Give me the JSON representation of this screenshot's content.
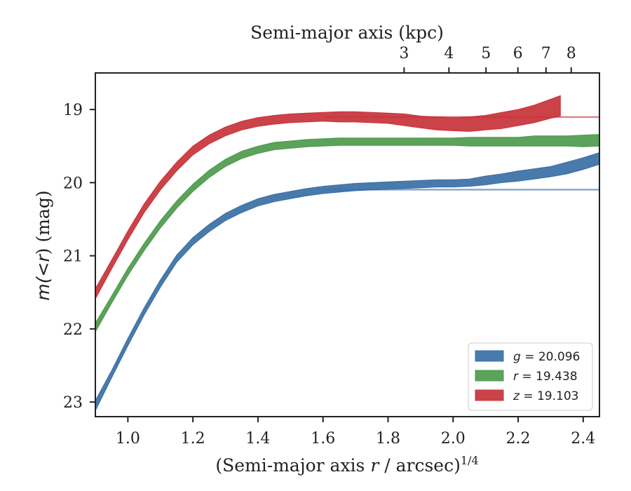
{
  "chart_data": {
    "type": "area",
    "xlabel": "(Semi-major axis r / arcsec)",
    "xlabel_var": "r",
    "xlabel_pre": "(Semi-major axis ",
    "xlabel_post": " / arcsec)",
    "xlabel_sup": "1/4",
    "ylabel_pre": "m(",
    "ylabel_lt": "<",
    "ylabel_r": "r",
    "ylabel_post": ") (mag)",
    "top_xlabel": "Semi-major axis (kpc)",
    "xlim": [
      0.9,
      2.45
    ],
    "ylim": [
      23.2,
      18.5
    ],
    "y_inverted": true,
    "x_ticks": [
      "1.0",
      "1.2",
      "1.4",
      "1.6",
      "1.8",
      "2.0",
      "2.2",
      "2.4"
    ],
    "y_ticks": [
      "19",
      "20",
      "21",
      "22",
      "23"
    ],
    "top_ticks": [
      "3",
      "4",
      "5",
      "6",
      "7",
      "8"
    ],
    "top_ticks_kpc": [
      3,
      4,
      5,
      6,
      7,
      8
    ],
    "kpc_per_arcsec": 0.2565,
    "legend_position": "lower-right",
    "series": [
      {
        "band": "g",
        "value": "20.096",
        "asymptote": 20.096,
        "asymptote_from": 1.6,
        "color": "#3a6fa5",
        "points": [
          [
            0.9,
            23.05,
            0.07
          ],
          [
            0.95,
            22.62,
            0.05
          ],
          [
            1.0,
            22.18,
            0.05
          ],
          [
            1.05,
            21.76,
            0.05
          ],
          [
            1.1,
            21.38,
            0.05
          ],
          [
            1.15,
            21.04,
            0.05
          ],
          [
            1.2,
            20.8,
            0.05
          ],
          [
            1.25,
            20.62,
            0.05
          ],
          [
            1.3,
            20.47,
            0.05
          ],
          [
            1.35,
            20.36,
            0.05
          ],
          [
            1.4,
            20.27,
            0.05
          ],
          [
            1.45,
            20.21,
            0.05
          ],
          [
            1.5,
            20.17,
            0.05
          ],
          [
            1.55,
            20.13,
            0.05
          ],
          [
            1.6,
            20.1,
            0.05
          ],
          [
            1.65,
            20.08,
            0.05
          ],
          [
            1.7,
            20.06,
            0.05
          ],
          [
            1.75,
            20.05,
            0.05
          ],
          [
            1.8,
            20.04,
            0.05
          ],
          [
            1.85,
            20.03,
            0.05
          ],
          [
            1.9,
            20.02,
            0.05
          ],
          [
            1.95,
            20.01,
            0.05
          ],
          [
            2.0,
            20.01,
            0.05
          ],
          [
            2.05,
            20.0,
            0.05
          ],
          [
            2.1,
            19.97,
            0.06
          ],
          [
            2.15,
            19.94,
            0.06
          ],
          [
            2.2,
            19.91,
            0.07
          ],
          [
            2.25,
            19.88,
            0.07
          ],
          [
            2.3,
            19.85,
            0.07
          ],
          [
            2.35,
            19.8,
            0.08
          ],
          [
            2.4,
            19.74,
            0.08
          ],
          [
            2.45,
            19.67,
            0.08
          ]
        ]
      },
      {
        "band": "r",
        "value": "19.438",
        "color": "#4d9a4d",
        "points": [
          [
            0.9,
            21.98,
            0.06
          ],
          [
            0.95,
            21.6,
            0.05
          ],
          [
            1.0,
            21.22,
            0.05
          ],
          [
            1.05,
            20.88,
            0.05
          ],
          [
            1.1,
            20.57,
            0.05
          ],
          [
            1.15,
            20.3,
            0.05
          ],
          [
            1.2,
            20.07,
            0.05
          ],
          [
            1.25,
            19.88,
            0.05
          ],
          [
            1.3,
            19.73,
            0.05
          ],
          [
            1.35,
            19.62,
            0.05
          ],
          [
            1.4,
            19.55,
            0.05
          ],
          [
            1.45,
            19.5,
            0.05
          ],
          [
            1.5,
            19.48,
            0.05
          ],
          [
            1.55,
            19.46,
            0.05
          ],
          [
            1.6,
            19.45,
            0.05
          ],
          [
            1.65,
            19.44,
            0.05
          ],
          [
            1.7,
            19.44,
            0.05
          ],
          [
            1.75,
            19.44,
            0.05
          ],
          [
            1.8,
            19.44,
            0.05
          ],
          [
            1.85,
            19.44,
            0.05
          ],
          [
            1.9,
            19.44,
            0.05
          ],
          [
            1.95,
            19.44,
            0.05
          ],
          [
            2.0,
            19.44,
            0.05
          ],
          [
            2.05,
            19.44,
            0.06
          ],
          [
            2.1,
            19.44,
            0.06
          ],
          [
            2.15,
            19.44,
            0.06
          ],
          [
            2.2,
            19.44,
            0.06
          ],
          [
            2.25,
            19.43,
            0.07
          ],
          [
            2.3,
            19.43,
            0.07
          ],
          [
            2.35,
            19.43,
            0.07
          ],
          [
            2.4,
            19.43,
            0.08
          ],
          [
            2.45,
            19.42,
            0.08
          ]
        ]
      },
      {
        "band": "z",
        "value": "19.103",
        "asymptote": 19.103,
        "asymptote_from": 1.6,
        "color": "#c8323a",
        "points": [
          [
            0.9,
            21.52,
            0.07
          ],
          [
            0.95,
            21.12,
            0.06
          ],
          [
            1.0,
            20.72,
            0.06
          ],
          [
            1.05,
            20.35,
            0.06
          ],
          [
            1.1,
            20.04,
            0.06
          ],
          [
            1.15,
            19.78,
            0.06
          ],
          [
            1.2,
            19.56,
            0.06
          ],
          [
            1.25,
            19.41,
            0.06
          ],
          [
            1.3,
            19.3,
            0.06
          ],
          [
            1.35,
            19.22,
            0.06
          ],
          [
            1.4,
            19.17,
            0.06
          ],
          [
            1.45,
            19.14,
            0.06
          ],
          [
            1.5,
            19.12,
            0.06
          ],
          [
            1.55,
            19.11,
            0.06
          ],
          [
            1.6,
            19.1,
            0.06
          ],
          [
            1.65,
            19.1,
            0.07
          ],
          [
            1.7,
            19.1,
            0.07
          ],
          [
            1.75,
            19.11,
            0.07
          ],
          [
            1.8,
            19.12,
            0.07
          ],
          [
            1.85,
            19.14,
            0.08
          ],
          [
            1.9,
            19.17,
            0.08
          ],
          [
            1.95,
            19.19,
            0.09
          ],
          [
            2.0,
            19.2,
            0.09
          ],
          [
            2.05,
            19.2,
            0.1
          ],
          [
            2.1,
            19.18,
            0.1
          ],
          [
            2.15,
            19.15,
            0.11
          ],
          [
            2.2,
            19.11,
            0.11
          ],
          [
            2.25,
            19.06,
            0.12
          ],
          [
            2.3,
            18.99,
            0.13
          ],
          [
            2.33,
            18.95,
            0.14
          ]
        ]
      }
    ]
  }
}
